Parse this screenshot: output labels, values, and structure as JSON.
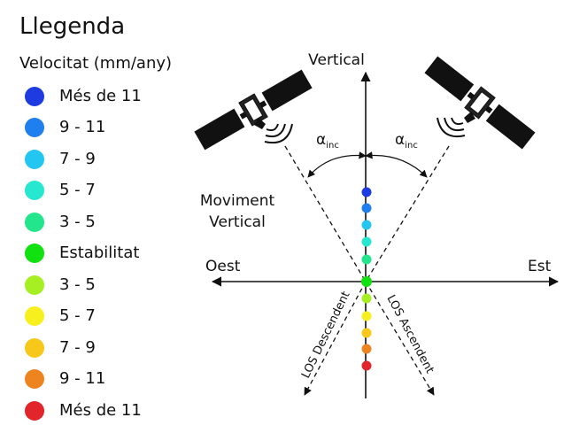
{
  "legend": {
    "title": "Llegenda",
    "subtitle": "Velocitat (mm/any)",
    "items": [
      {
        "label": "Més de 11",
        "color": "#1d3be0"
      },
      {
        "label": "9 - 11",
        "color": "#1f7fee"
      },
      {
        "label": "7 - 9",
        "color": "#22c6f0"
      },
      {
        "label": "5 - 7",
        "color": "#26e8d0"
      },
      {
        "label": "3 - 5",
        "color": "#22e58c"
      },
      {
        "label": "Estabilitat",
        "color": "#11e011"
      },
      {
        "label": "3 - 5",
        "color": "#a6ef22"
      },
      {
        "label": "5 - 7",
        "color": "#f7f01e"
      },
      {
        "label": "7 - 9",
        "color": "#f7c81a"
      },
      {
        "label": "9 - 11",
        "color": "#ee8420"
      },
      {
        "label": "Més de 11",
        "color": "#e1252a"
      }
    ]
  },
  "diagram": {
    "axis_vertical": "Vertical",
    "axis_west": "Oest",
    "axis_east": "Est",
    "vertical_movement_line1": "Moviment",
    "vertical_movement_line2": "Vertical",
    "angle_symbol": "α",
    "angle_subscript": "inc",
    "los_descending": "LOS Descendent",
    "los_ascending": "LOS Ascendent"
  }
}
